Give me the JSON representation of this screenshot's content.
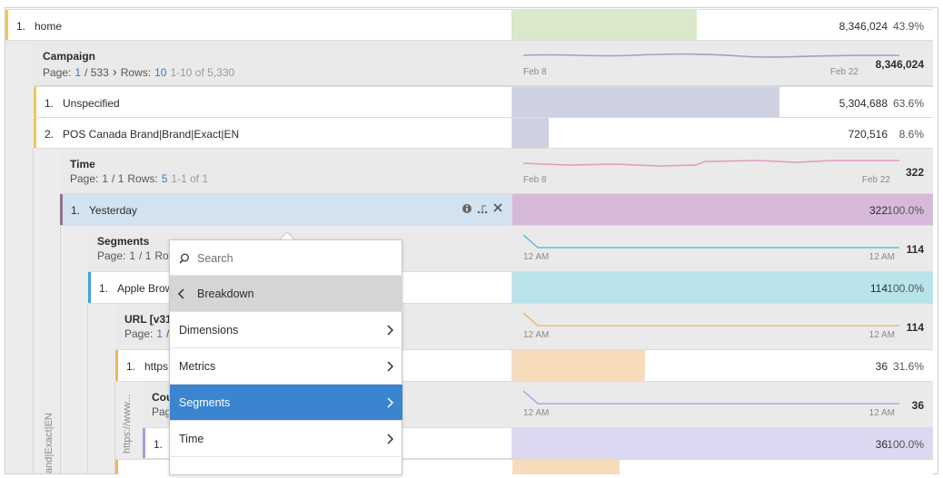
{
  "rows": [
    {
      "rank": "1.",
      "label": "home",
      "value": "8,346,024",
      "percent": {
        "value": 43.9,
        "label": "43.9%"
      }
    },
    {
      "rank": "1.",
      "label": "Unspecified",
      "value": "5,304,688",
      "percent": {
        "value": 63.6,
        "label": "63.6%"
      }
    },
    {
      "rank": "2.",
      "label": "POS Canada Brand|Brand|Exact|EN",
      "value": "720,516",
      "percent": {
        "value": 8.6,
        "label": "8.6%"
      }
    },
    {
      "rank": "1.",
      "label": "Yesterday",
      "value": "322",
      "percent": {
        "value": 100.0,
        "label": "100.0%"
      }
    },
    {
      "rank": "1.",
      "label": "Apple Brow",
      "value": "114",
      "percent": {
        "value": 100.0,
        "label": "100.0%"
      }
    },
    {
      "rank": "1.",
      "label": "https",
      "value": "36",
      "percent": {
        "value": 31.6,
        "label": "31.6%"
      }
    },
    {
      "rank": "1.",
      "value": "36",
      "percent": {
        "value": 100.0,
        "label": "100.0%"
      }
    }
  ],
  "breakdowns": [
    {
      "title": "Campaign",
      "pager": {
        "page_label": "Page:",
        "page": "1",
        "page_total": "/ 533",
        "rows_label": "Rows:",
        "rows": "10",
        "range": "1-10 of 5,330"
      },
      "x_start": "Feb 8",
      "x_end": "Feb 22",
      "total": "8,346,024"
    },
    {
      "title": "Time",
      "pager": {
        "page_label": "Page:",
        "page": "1",
        "page_total": "/ 1",
        "rows_label": "Rows:",
        "rows": "5",
        "range": "1-1 of 1"
      },
      "x_start": "Feb 8",
      "x_end": "Feb 22",
      "total": "322"
    },
    {
      "title": "Segments",
      "pager": {
        "page_label": "Page:",
        "page": "1",
        "page_total": "/ 1",
        "rows_label": "Row"
      },
      "x_start": "12 AM",
      "x_end": "12 AM",
      "total": "114"
    },
    {
      "title": "URL [v31]",
      "pager": {
        "page_label": "Page:",
        "page": "1",
        "page_total": "/"
      },
      "x_start": "12 AM",
      "x_end": "12 AM",
      "total": "114"
    },
    {
      "title": "Cou",
      "pager": {
        "page_label": "Pag"
      },
      "x_start": "12 AM",
      "x_end": "12 AM",
      "total": "36"
    }
  ],
  "gutter_labels": [
    "and|Exact|EN",
    "https://www..."
  ],
  "menu": {
    "search": "Search",
    "back": "Breakdown",
    "items": [
      "Dimensions",
      "Metrics",
      "Segments",
      "Time"
    ]
  }
}
